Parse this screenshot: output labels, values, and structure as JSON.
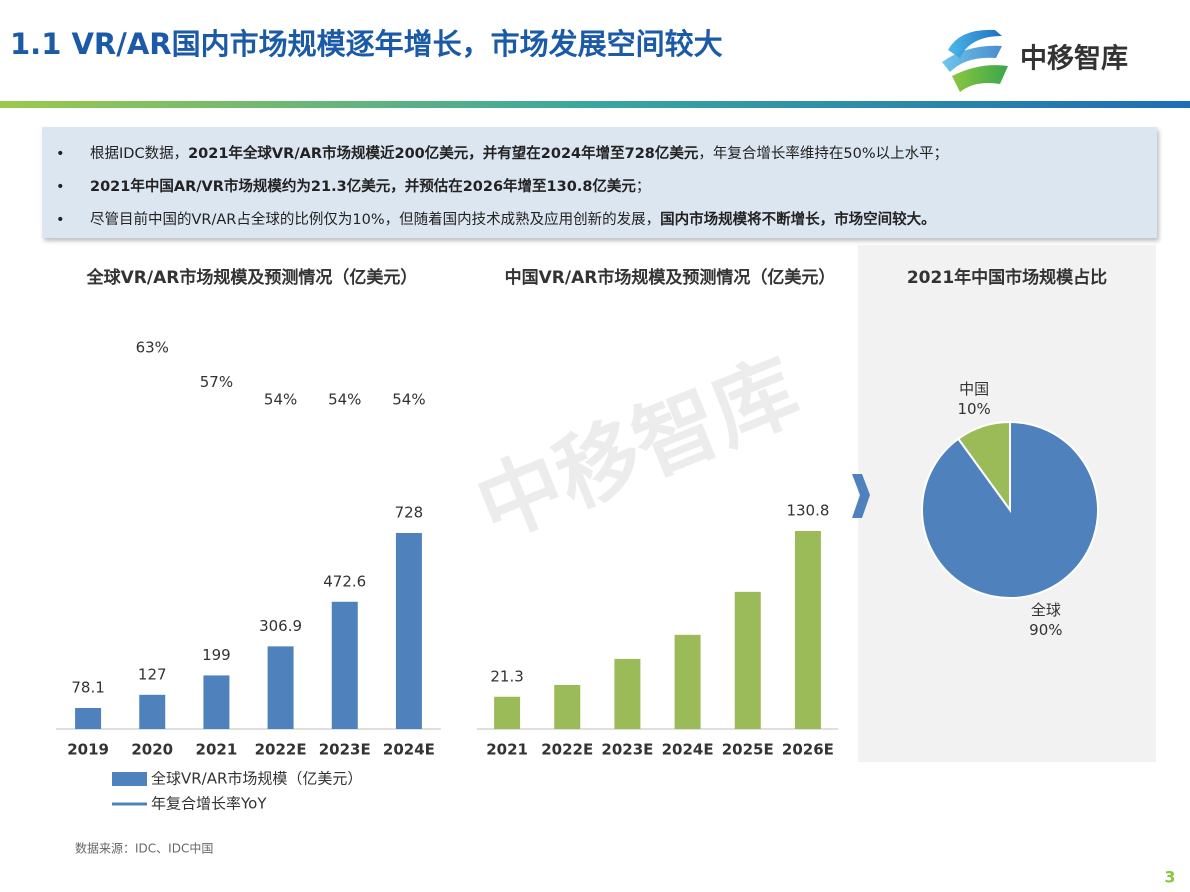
{
  "header": {
    "title": "1.1 VR/AR国内市场规模逐年增长，市场发展空间较大",
    "logo": "中移智库"
  },
  "bullets": [
    [
      {
        "text": "根据IDC数据，"
      },
      {
        "text": "2021年全球VR/AR市场规模近200亿美元，并有望在2024年增至728亿美元",
        "bold": true
      },
      {
        "text": "，年复合增长率维持在50%以上水平；"
      }
    ],
    [
      {
        "text": "2021年中国AR/VR市场规模约为21.3亿美元，并预估在2026年增至130.8亿美元",
        "bold": true
      },
      {
        "text": "；"
      }
    ],
    [
      {
        "text": "尽管目前中国的VR/AR占全球的比例仅为10%，但随着国内技术成熟及应用创新的发展，"
      },
      {
        "text": "国内市场规模将不断增长，市场空间较大。",
        "bold": true
      }
    ]
  ],
  "watermark": "中移智库",
  "chart_data": [
    {
      "type": "bar_line",
      "title": "全球VR/AR市场规模及预测情况（亿美元）",
      "categories": [
        "2019",
        "2020",
        "2021",
        "2022E",
        "2023E",
        "2024E"
      ],
      "series": [
        {
          "name": "全球VR/AR市场规模（亿美元）",
          "type": "bar",
          "color": "#4f81bd",
          "values": [
            78.1,
            127,
            199,
            306.9,
            472.6,
            728
          ]
        },
        {
          "name": "年复合增长率YoY",
          "type": "line",
          "color": "#4f81bd",
          "values": [
            null,
            63,
            57,
            54,
            54,
            54
          ],
          "value_labels": [
            null,
            "63%",
            "57%",
            "54%",
            "54%",
            "54%"
          ]
        }
      ]
    },
    {
      "type": "bar",
      "title": "中国VR/AR市场规模及预测情况（亿美元）",
      "categories": [
        "2021",
        "2022E",
        "2023E",
        "2024E",
        "2025E",
        "2026E"
      ],
      "values": [
        21.3,
        29.1,
        46.3,
        62.2,
        90.6,
        130.8
      ],
      "value_labels": [
        "21.3",
        null,
        null,
        null,
        null,
        "130.8"
      ],
      "color": "#9bbb59"
    },
    {
      "type": "pie",
      "title": "2021年中国市场规模占比",
      "categories": [
        "中国",
        "全球"
      ],
      "values": [
        10,
        90
      ],
      "value_labels": [
        "10%",
        "90%"
      ],
      "colors": [
        "#9bbb59",
        "#4f81bd"
      ]
    }
  ],
  "source": "数据来源：IDC、IDC中国",
  "page_number": 3
}
